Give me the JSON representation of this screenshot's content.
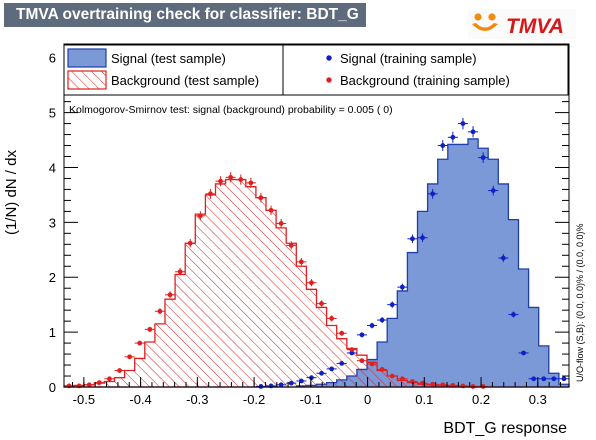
{
  "title": "TMVA overtraining check for classifier: BDT_G",
  "logo_text": "TMVA",
  "colors": {
    "signal_fill": "#7b99d6",
    "signal_line": "#1f3faa",
    "signal_points": "#1020c8",
    "background": "#e02020",
    "title_bg": "#5d6b7d"
  },
  "legend": {
    "signal_test": "Signal (test sample)",
    "background_test": "Background (test sample)",
    "signal_train": "Signal (training sample)",
    "background_train": "Background (training sample)"
  },
  "ks_text": "Kolmogorov-Smirnov test: signal (background) probability = 0.005 (    0)",
  "overflow_text": "U/O-flow (S,B): (0.0, 0.0)% / (0.0, 0.0)%",
  "chart_data": {
    "type": "histogram",
    "xlabel": "BDT_G response",
    "ylabel": "(1/N) dN / dx",
    "xlim": [
      -0.535,
      0.355
    ],
    "ylim": [
      0,
      6.25
    ],
    "x_ticks": [
      -0.5,
      -0.4,
      -0.3,
      -0.2,
      -0.1,
      0,
      0.1,
      0.2,
      0.3
    ],
    "x_tick_labels": [
      "-0.5",
      "-0.4",
      "-0.3",
      "-0.2",
      "-0.1",
      "0",
      "0.1",
      "0.2",
      "0.3"
    ],
    "y_ticks": [
      0,
      1,
      2,
      3,
      4,
      5,
      6
    ],
    "y_tick_labels": [
      "0",
      "1",
      "2",
      "3",
      "4",
      "5",
      "6"
    ],
    "bin_edges": [
      -0.535,
      -0.5172,
      -0.4994,
      -0.4816,
      -0.4638,
      -0.446,
      -0.4282,
      -0.4104,
      -0.3926,
      -0.3748,
      -0.357,
      -0.3392,
      -0.3214,
      -0.3036,
      -0.2858,
      -0.268,
      -0.2502,
      -0.2324,
      -0.2146,
      -0.1968,
      -0.179,
      -0.1612,
      -0.1434,
      -0.1256,
      -0.1078,
      -0.09,
      -0.0722,
      -0.0544,
      -0.0366,
      -0.0188,
      -0.001,
      0.0168,
      0.0346,
      0.0524,
      0.0702,
      0.088,
      0.1058,
      0.1236,
      0.1414,
      0.1592,
      0.177,
      0.1948,
      0.2126,
      0.2304,
      0.2482,
      0.266,
      0.2838,
      0.3016,
      0.3194,
      0.3372,
      0.355
    ],
    "series": [
      {
        "name": "Signal (test sample)",
        "kind": "filled-histogram",
        "values": [
          0,
          0,
          0,
          0,
          0,
          0,
          0,
          0,
          0,
          0,
          0,
          0,
          0,
          0,
          0,
          0,
          0,
          0,
          0,
          0,
          0,
          0,
          0,
          0.02,
          0.03,
          0.05,
          0.08,
          0.13,
          0.2,
          0.32,
          0.5,
          0.82,
          1.25,
          1.75,
          2.45,
          3.2,
          3.7,
          4.15,
          4.42,
          4.42,
          4.52,
          4.35,
          4.15,
          3.7,
          3.05,
          2.15,
          1.45,
          0.75,
          0.25,
          0.05
        ]
      },
      {
        "name": "Background (test sample)",
        "kind": "hatched-histogram",
        "values": [
          0.02,
          0.03,
          0.04,
          0.07,
          0.1,
          0.17,
          0.3,
          0.52,
          0.82,
          1.15,
          1.6,
          2.05,
          2.62,
          3.15,
          3.5,
          3.7,
          3.78,
          3.78,
          3.65,
          3.45,
          3.22,
          2.9,
          2.62,
          2.2,
          1.78,
          1.45,
          1.12,
          0.88,
          0.7,
          0.58,
          0.45,
          0.3,
          0.2,
          0.12,
          0.08,
          0.05,
          0.04,
          0.03,
          0.02,
          0.01,
          0,
          0,
          0,
          0,
          0,
          0,
          0,
          0,
          0,
          0
        ]
      },
      {
        "name": "Signal (training sample)",
        "kind": "points",
        "values": [
          0,
          0,
          0,
          0,
          0,
          0,
          0,
          0,
          0,
          0,
          0,
          0,
          0,
          0,
          0,
          0,
          0,
          0,
          0,
          0.01,
          0.02,
          0.04,
          0.07,
          0.11,
          0.17,
          0.25,
          0.33,
          0.43,
          0.62,
          0.95,
          1.12,
          1.22,
          1.5,
          1.82,
          2.7,
          2.72,
          3.52,
          4.4,
          4.55,
          4.8,
          4.65,
          4.18,
          3.58,
          2.35,
          1.32,
          0.62,
          0.15,
          0.15,
          0.15,
          0.15
        ]
      },
      {
        "name": "Background (training sample)",
        "kind": "points",
        "values": [
          0.02,
          0.02,
          0.04,
          0.08,
          0.15,
          0.3,
          0.55,
          0.8,
          1.05,
          1.38,
          1.68,
          2.1,
          2.62,
          3.12,
          3.52,
          3.75,
          3.82,
          3.78,
          3.72,
          3.45,
          3.22,
          2.98,
          2.58,
          2.28,
          1.9,
          1.52,
          1.25,
          0.98,
          0.68,
          0.48,
          0.42,
          0.32,
          0.2,
          0.15,
          0.1,
          0.07,
          0.05,
          0.04,
          0.03,
          0.02,
          0.01,
          0.01,
          0,
          0,
          0,
          0,
          0,
          0,
          0,
          0
        ]
      }
    ]
  }
}
